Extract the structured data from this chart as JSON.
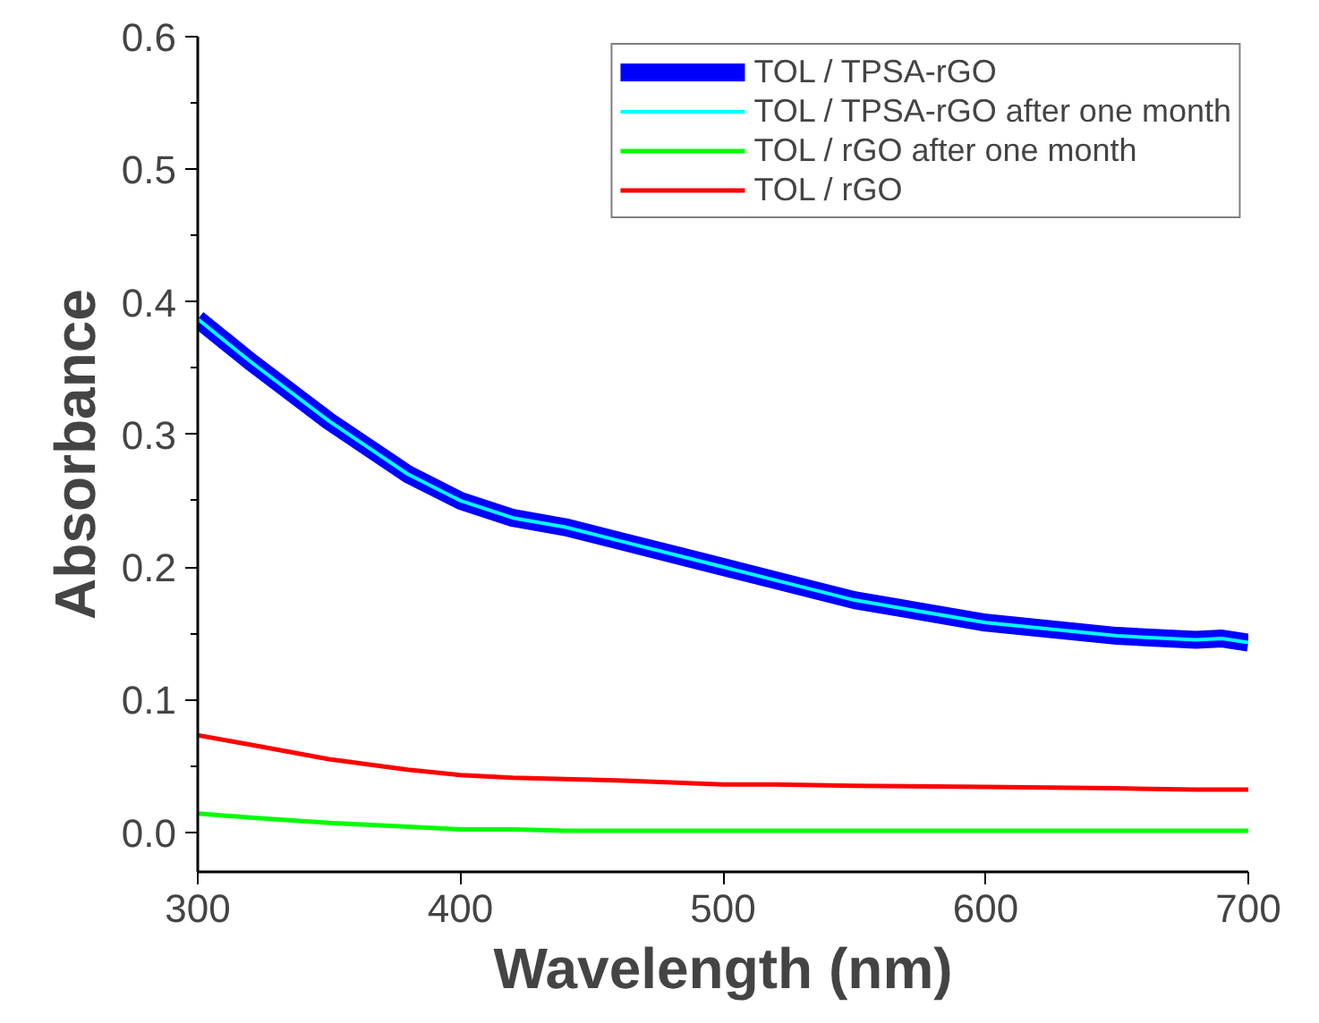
{
  "chart_data": {
    "type": "line",
    "xlabel": "Wavelength (nm)",
    "ylabel": "Absorbance",
    "xlim": [
      300,
      700
    ],
    "ylim": [
      -0.03,
      0.6
    ],
    "xticks": [
      300,
      400,
      500,
      600,
      700
    ],
    "yticks": [
      {
        "value": 0,
        "label": "0.0"
      },
      0.1,
      0.2,
      0.3,
      0.4,
      0.5,
      0.6
    ],
    "grid": false,
    "legend": "top right",
    "marker": "none",
    "line_style": "solid",
    "x": [
      300,
      320,
      350,
      380,
      400,
      420,
      440,
      460,
      500,
      520,
      550,
      600,
      650,
      680,
      690,
      700
    ],
    "series": [
      {
        "name": "TOL / TPSA-rGO",
        "color": "#0000ff",
        "values": [
          0.387,
          0.355,
          0.31,
          0.27,
          0.25,
          0.237,
          0.23,
          0.22,
          0.2,
          0.19,
          0.175,
          0.158,
          0.148,
          0.145,
          0.146,
          0.143
        ]
      },
      {
        "name": "TOL / TPSA-rGO after one month",
        "color": "#00ffff",
        "values": [
          0.387,
          0.355,
          0.31,
          0.27,
          0.25,
          0.237,
          0.23,
          0.22,
          0.2,
          0.19,
          0.175,
          0.158,
          0.148,
          0.145,
          0.146,
          0.143
        ]
      },
      {
        "name": "TOL / rGO after one month",
        "color": "#00ff00",
        "values": [
          0.014,
          0.011,
          0.007,
          0.004,
          0.002,
          0.002,
          0.001,
          0.001,
          0.001,
          0.001,
          0.001,
          0.001,
          0.001,
          0.001,
          0.001,
          0.001
        ]
      },
      {
        "name": "TOL / rGO",
        "color": "#ff0000",
        "values": [
          0.073,
          0.066,
          0.055,
          0.047,
          0.043,
          0.041,
          0.04,
          0.039,
          0.036,
          0.036,
          0.035,
          0.034,
          0.033,
          0.032,
          0.032,
          0.032
        ]
      }
    ]
  }
}
